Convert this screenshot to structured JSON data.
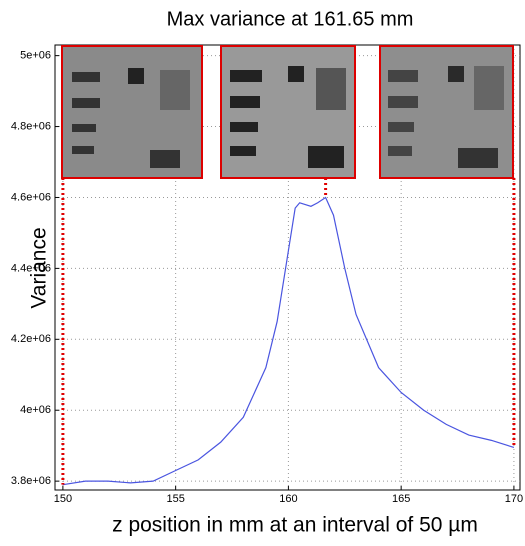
{
  "chart_data": {
    "type": "line",
    "title": "Max  variance at 161.65 mm",
    "x_label": "z position in mm at an interval of 50 µm",
    "y_label": "Variance",
    "x": [
      150,
      151,
      152,
      153,
      154,
      155,
      156,
      157,
      158,
      159,
      159.5,
      160,
      160.3,
      160.5,
      161,
      161.3,
      161.65,
      162,
      162.5,
      163,
      164,
      165,
      166,
      167,
      168,
      169,
      170
    ],
    "series": [
      {
        "name": "Variance",
        "color": "#4a55e0",
        "values": [
          3790000,
          3800000,
          3800000,
          3795000,
          3800000,
          3830000,
          3860000,
          3910000,
          3980000,
          4120000,
          4250000,
          4450000,
          4570000,
          4585000,
          4575000,
          4585000,
          4600000,
          4550000,
          4400000,
          4270000,
          4120000,
          4050000,
          4000000,
          3960000,
          3930000,
          3915000,
          3895000
        ]
      }
    ],
    "markers": [
      150,
      161.65,
      170
    ],
    "marker_color": "#e00000",
    "xlim": [
      149.65,
      170.27
    ],
    "ylim": [
      3775000,
      5030000
    ],
    "xticks": [
      150,
      155,
      160,
      165,
      170
    ],
    "yticks": [
      {
        "value": 3800000,
        "label": "3.8e+06"
      },
      {
        "value": 4000000,
        "label": "4e+06"
      },
      {
        "value": 4200000,
        "label": "4.2e+06"
      },
      {
        "value": 4400000,
        "label": "4.4e+06"
      },
      {
        "value": 4600000,
        "label": "4.6e+06"
      },
      {
        "value": 4800000,
        "label": "4.8e+06"
      },
      {
        "value": 5000000,
        "label": "5e+06"
      }
    ],
    "grid": true
  }
}
